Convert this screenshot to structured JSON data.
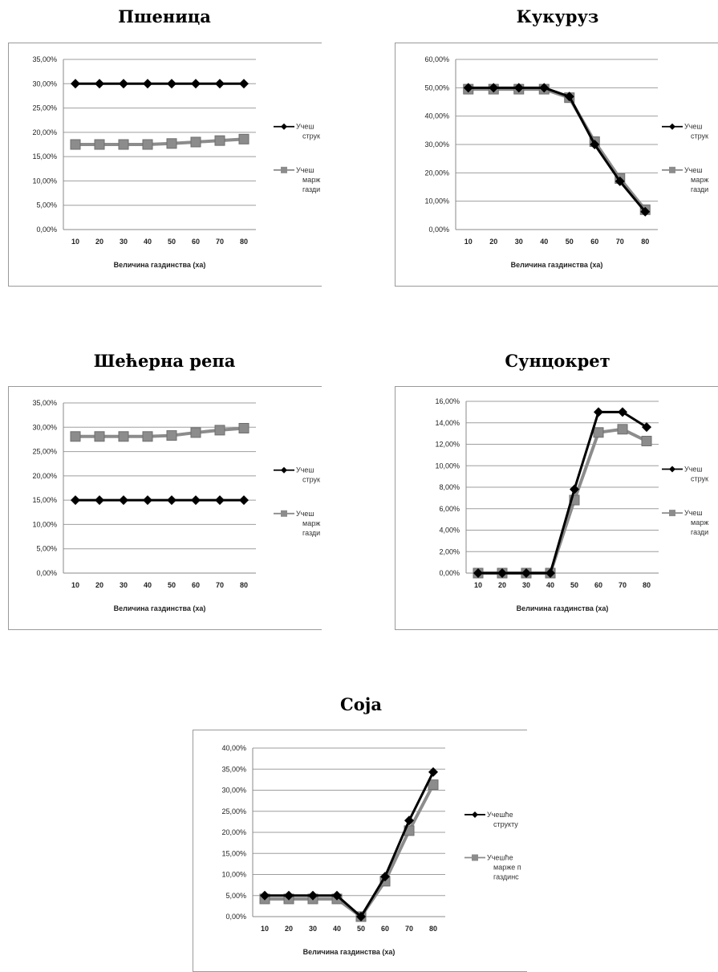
{
  "chart_data": [
    {
      "type": "line",
      "title": "Пшеница",
      "xlabel": "Величина газдинства (ха)",
      "ylabel": "",
      "categories": [
        "10",
        "20",
        "30",
        "40",
        "50",
        "60",
        "70",
        "80"
      ],
      "ylim": [
        0,
        35
      ],
      "yticks": [
        "0,00%",
        "5,00%",
        "10,00%",
        "15,00%",
        "20,00%",
        "25,00%",
        "30,00%",
        "35,00%"
      ],
      "grid": true,
      "legend": "right",
      "series": [
        {
          "name": "Учешће у структури",
          "legend_lines": [
            "Учеш",
            "струк"
          ],
          "color": "#000000",
          "marker": "diamond",
          "values": [
            30,
            30,
            30,
            30,
            30,
            30,
            30,
            30
          ]
        },
        {
          "name": "Учешће у маржи покрића газдинства",
          "legend_lines": [
            "Учеш",
            "марж",
            "газди"
          ],
          "color": "#8c8c8c",
          "marker": "square",
          "values": [
            17.5,
            17.5,
            17.5,
            17.5,
            17.7,
            18.0,
            18.3,
            18.6
          ]
        }
      ]
    },
    {
      "type": "line",
      "title": "Кукуруз",
      "xlabel": "Величина газдинства (ха)",
      "ylabel": "",
      "categories": [
        "10",
        "20",
        "30",
        "40",
        "50",
        "60",
        "70",
        "80"
      ],
      "ylim": [
        0,
        60
      ],
      "yticks": [
        "0,00%",
        "10,00%",
        "20,00%",
        "30,00%",
        "40,00%",
        "50,00%",
        "60,00%"
      ],
      "grid": true,
      "legend": "right",
      "series": [
        {
          "name": "Учешће у структури",
          "legend_lines": [
            "Учеш",
            "струк"
          ],
          "color": "#000000",
          "marker": "diamond",
          "values": [
            50,
            50,
            50,
            50,
            46.9,
            30,
            17,
            6.3
          ]
        },
        {
          "name": "Учешће у маржи покрића газдинства",
          "legend_lines": [
            "Учеш",
            "марж",
            "газди"
          ],
          "color": "#8c8c8c",
          "marker": "square",
          "values": [
            49.5,
            49.5,
            49.5,
            49.5,
            46.5,
            31,
            18,
            7
          ]
        }
      ]
    },
    {
      "type": "line",
      "title": "Шећерна репа",
      "xlabel": "Величина газдинства (ха)",
      "ylabel": "",
      "categories": [
        "10",
        "20",
        "30",
        "40",
        "50",
        "60",
        "70",
        "80"
      ],
      "ylim": [
        0,
        35
      ],
      "yticks": [
        "0,00%",
        "5,00%",
        "10,00%",
        "15,00%",
        "20,00%",
        "25,00%",
        "30,00%",
        "35,00%"
      ],
      "grid": true,
      "legend": "right",
      "series": [
        {
          "name": "Учешће у структури",
          "legend_lines": [
            "Учеш",
            "струк"
          ],
          "color": "#000000",
          "marker": "diamond",
          "values": [
            15,
            15,
            15,
            15,
            15,
            15,
            15,
            15
          ]
        },
        {
          "name": "Учешће у маржи покрића газдинства",
          "legend_lines": [
            "Учеш",
            "марж",
            "газди"
          ],
          "color": "#8c8c8c",
          "marker": "square",
          "values": [
            28.1,
            28.1,
            28.1,
            28.1,
            28.3,
            28.9,
            29.4,
            29.8
          ]
        }
      ]
    },
    {
      "type": "line",
      "title": "Сунцокрет",
      "xlabel": "Величина газдинства (ха)",
      "ylabel": "",
      "categories": [
        "10",
        "20",
        "30",
        "40",
        "50",
        "60",
        "70",
        "80"
      ],
      "ylim": [
        0,
        16
      ],
      "yticks": [
        "0,00%",
        "2,00%",
        "4,00%",
        "6,00%",
        "8,00%",
        "10,00%",
        "12,00%",
        "14,00%",
        "16,00%"
      ],
      "grid": true,
      "legend": "right",
      "series": [
        {
          "name": "Учешће у структури",
          "legend_lines": [
            "Учеш",
            "струк"
          ],
          "color": "#000000",
          "marker": "diamond",
          "values": [
            0,
            0,
            0,
            0,
            7.8,
            15.0,
            15.0,
            13.6
          ]
        },
        {
          "name": "Учешће у маржи покрића газдинства",
          "legend_lines": [
            "Учеш",
            "марж",
            "газди"
          ],
          "color": "#8c8c8c",
          "marker": "square",
          "values": [
            0,
            0,
            0,
            0,
            6.8,
            13.1,
            13.4,
            12.3
          ]
        }
      ]
    },
    {
      "type": "line",
      "title": "Соја",
      "xlabel": "Величина газдинства (ха)",
      "ylabel": "",
      "categories": [
        "10",
        "20",
        "30",
        "40",
        "50",
        "60",
        "70",
        "80"
      ],
      "ylim": [
        0,
        40
      ],
      "yticks": [
        "0,00%",
        "5,00%",
        "10,00%",
        "15,00%",
        "20,00%",
        "25,00%",
        "30,00%",
        "35,00%",
        "40,00%"
      ],
      "grid": true,
      "legend": "right",
      "series": [
        {
          "name": "Учешће у структури",
          "legend_lines": [
            "Учешће",
            "структу"
          ],
          "color": "#000000",
          "marker": "diamond",
          "values": [
            5,
            5,
            5,
            5,
            0,
            9.5,
            22.8,
            34.3
          ]
        },
        {
          "name": "Учешће у маржи покрића газдинства",
          "legend_lines": [
            "Учешће",
            "марже п",
            "газдинс"
          ],
          "color": "#8c8c8c",
          "marker": "square",
          "values": [
            4.2,
            4.2,
            4.2,
            4.2,
            0,
            8.4,
            20.4,
            31.3
          ]
        }
      ]
    }
  ]
}
